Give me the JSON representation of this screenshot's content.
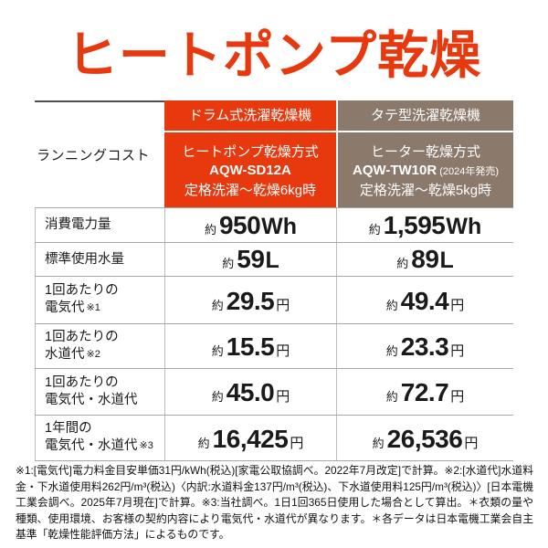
{
  "title": "ヒートポンプ乾燥",
  "colors": {
    "accent_red": "#E8380D",
    "accent_brown": "#8B7A6C"
  },
  "table": {
    "row_header_label": "ランニングコスト",
    "columns": [
      {
        "type_label": "ドラム式洗濯乾燥機",
        "method": "ヒートポンプ乾燥方式",
        "model": "AQW-SD12A",
        "model_suffix": "",
        "condition": "定格洗濯〜乾燥6kg時"
      },
      {
        "type_label": "タテ型洗濯乾燥機",
        "method": "ヒーター乾燥方式",
        "model": "AQW-TW10R",
        "model_suffix": "(2024年発売)",
        "condition": "定格洗濯〜乾燥5kg時"
      }
    ],
    "rows": [
      {
        "label1": "消費電力量",
        "label2": "",
        "note": "",
        "col1": {
          "approx": "約",
          "num": "950",
          "unit": "Wh"
        },
        "col2": {
          "approx": "約",
          "num": "1,595",
          "unit": "Wh"
        }
      },
      {
        "label1": "標準使用水量",
        "label2": "",
        "note": "",
        "col1": {
          "approx": "約",
          "num": "59",
          "unit": "L"
        },
        "col2": {
          "approx": "約",
          "num": "89",
          "unit": "L"
        }
      },
      {
        "label1": "1回あたりの",
        "label2": "電気代",
        "note": "※1",
        "col1": {
          "approx": "約",
          "num": "29.5",
          "unit": "円"
        },
        "col2": {
          "approx": "約",
          "num": "49.4",
          "unit": "円"
        }
      },
      {
        "label1": "1回あたりの",
        "label2": "水道代",
        "note": "※2",
        "col1": {
          "approx": "約",
          "num": "15.5",
          "unit": "円"
        },
        "col2": {
          "approx": "約",
          "num": "23.3",
          "unit": "円"
        }
      },
      {
        "label1": "1回あたりの",
        "label2": "電気代・水道代",
        "note": "",
        "col1": {
          "approx": "約",
          "num": "45.0",
          "unit": "円"
        },
        "col2": {
          "approx": "約",
          "num": "72.7",
          "unit": "円"
        }
      },
      {
        "label1": "1年間の",
        "label2": "電気代・水道代",
        "note": "※3",
        "col1": {
          "approx": "約",
          "num": "16,425",
          "unit": "円"
        },
        "col2": {
          "approx": "約",
          "num": "26,536",
          "unit": "円"
        }
      }
    ]
  },
  "footnotes": "※1:[電気代]電力料金目安単価31円/kWh(税込)[家電公取協調べ。2022年7月改定]で計算。※2:[水道代]水道料金・下水道使用料262円/m³(税込)〈内訳:水道料金137円/m³(税込)、下水道使用料125円/m³(税込)〉[日本電機工業会調べ。2025年7月現在]で計算。※3:当社調べ。1日1回365日使用した場合として算出。＊衣類の量や種類、使用環境、お客様の契約内容により電気代・水道代が異なります。＊各データは日本電機工業会自主基準「乾燥性能評価方法」によるものです。",
  "chart_data": {
    "type": "table",
    "title": "ヒートポンプ乾燥",
    "columns": [
      "ランニングコスト",
      "ドラム式洗濯乾燥機 / ヒートポンプ乾燥方式 AQW-SD12A / 定格洗濯〜乾燥6kg時",
      "タテ型洗濯乾燥機 / ヒーター乾燥方式 AQW-TW10R(2024年発売) / 定格洗濯〜乾燥5kg時"
    ],
    "rows": [
      [
        "消費電力量",
        "約950Wh",
        "約1,595Wh"
      ],
      [
        "標準使用水量",
        "約59L",
        "約89L"
      ],
      [
        "1回あたりの電気代※1",
        "約29.5円",
        "約49.4円"
      ],
      [
        "1回あたりの水道代※2",
        "約15.5円",
        "約23.3円"
      ],
      [
        "1回あたりの電気代・水道代",
        "約45.0円",
        "約72.7円"
      ],
      [
        "1年間の電気代・水道代※3",
        "約16,425円",
        "約26,536円"
      ]
    ]
  }
}
